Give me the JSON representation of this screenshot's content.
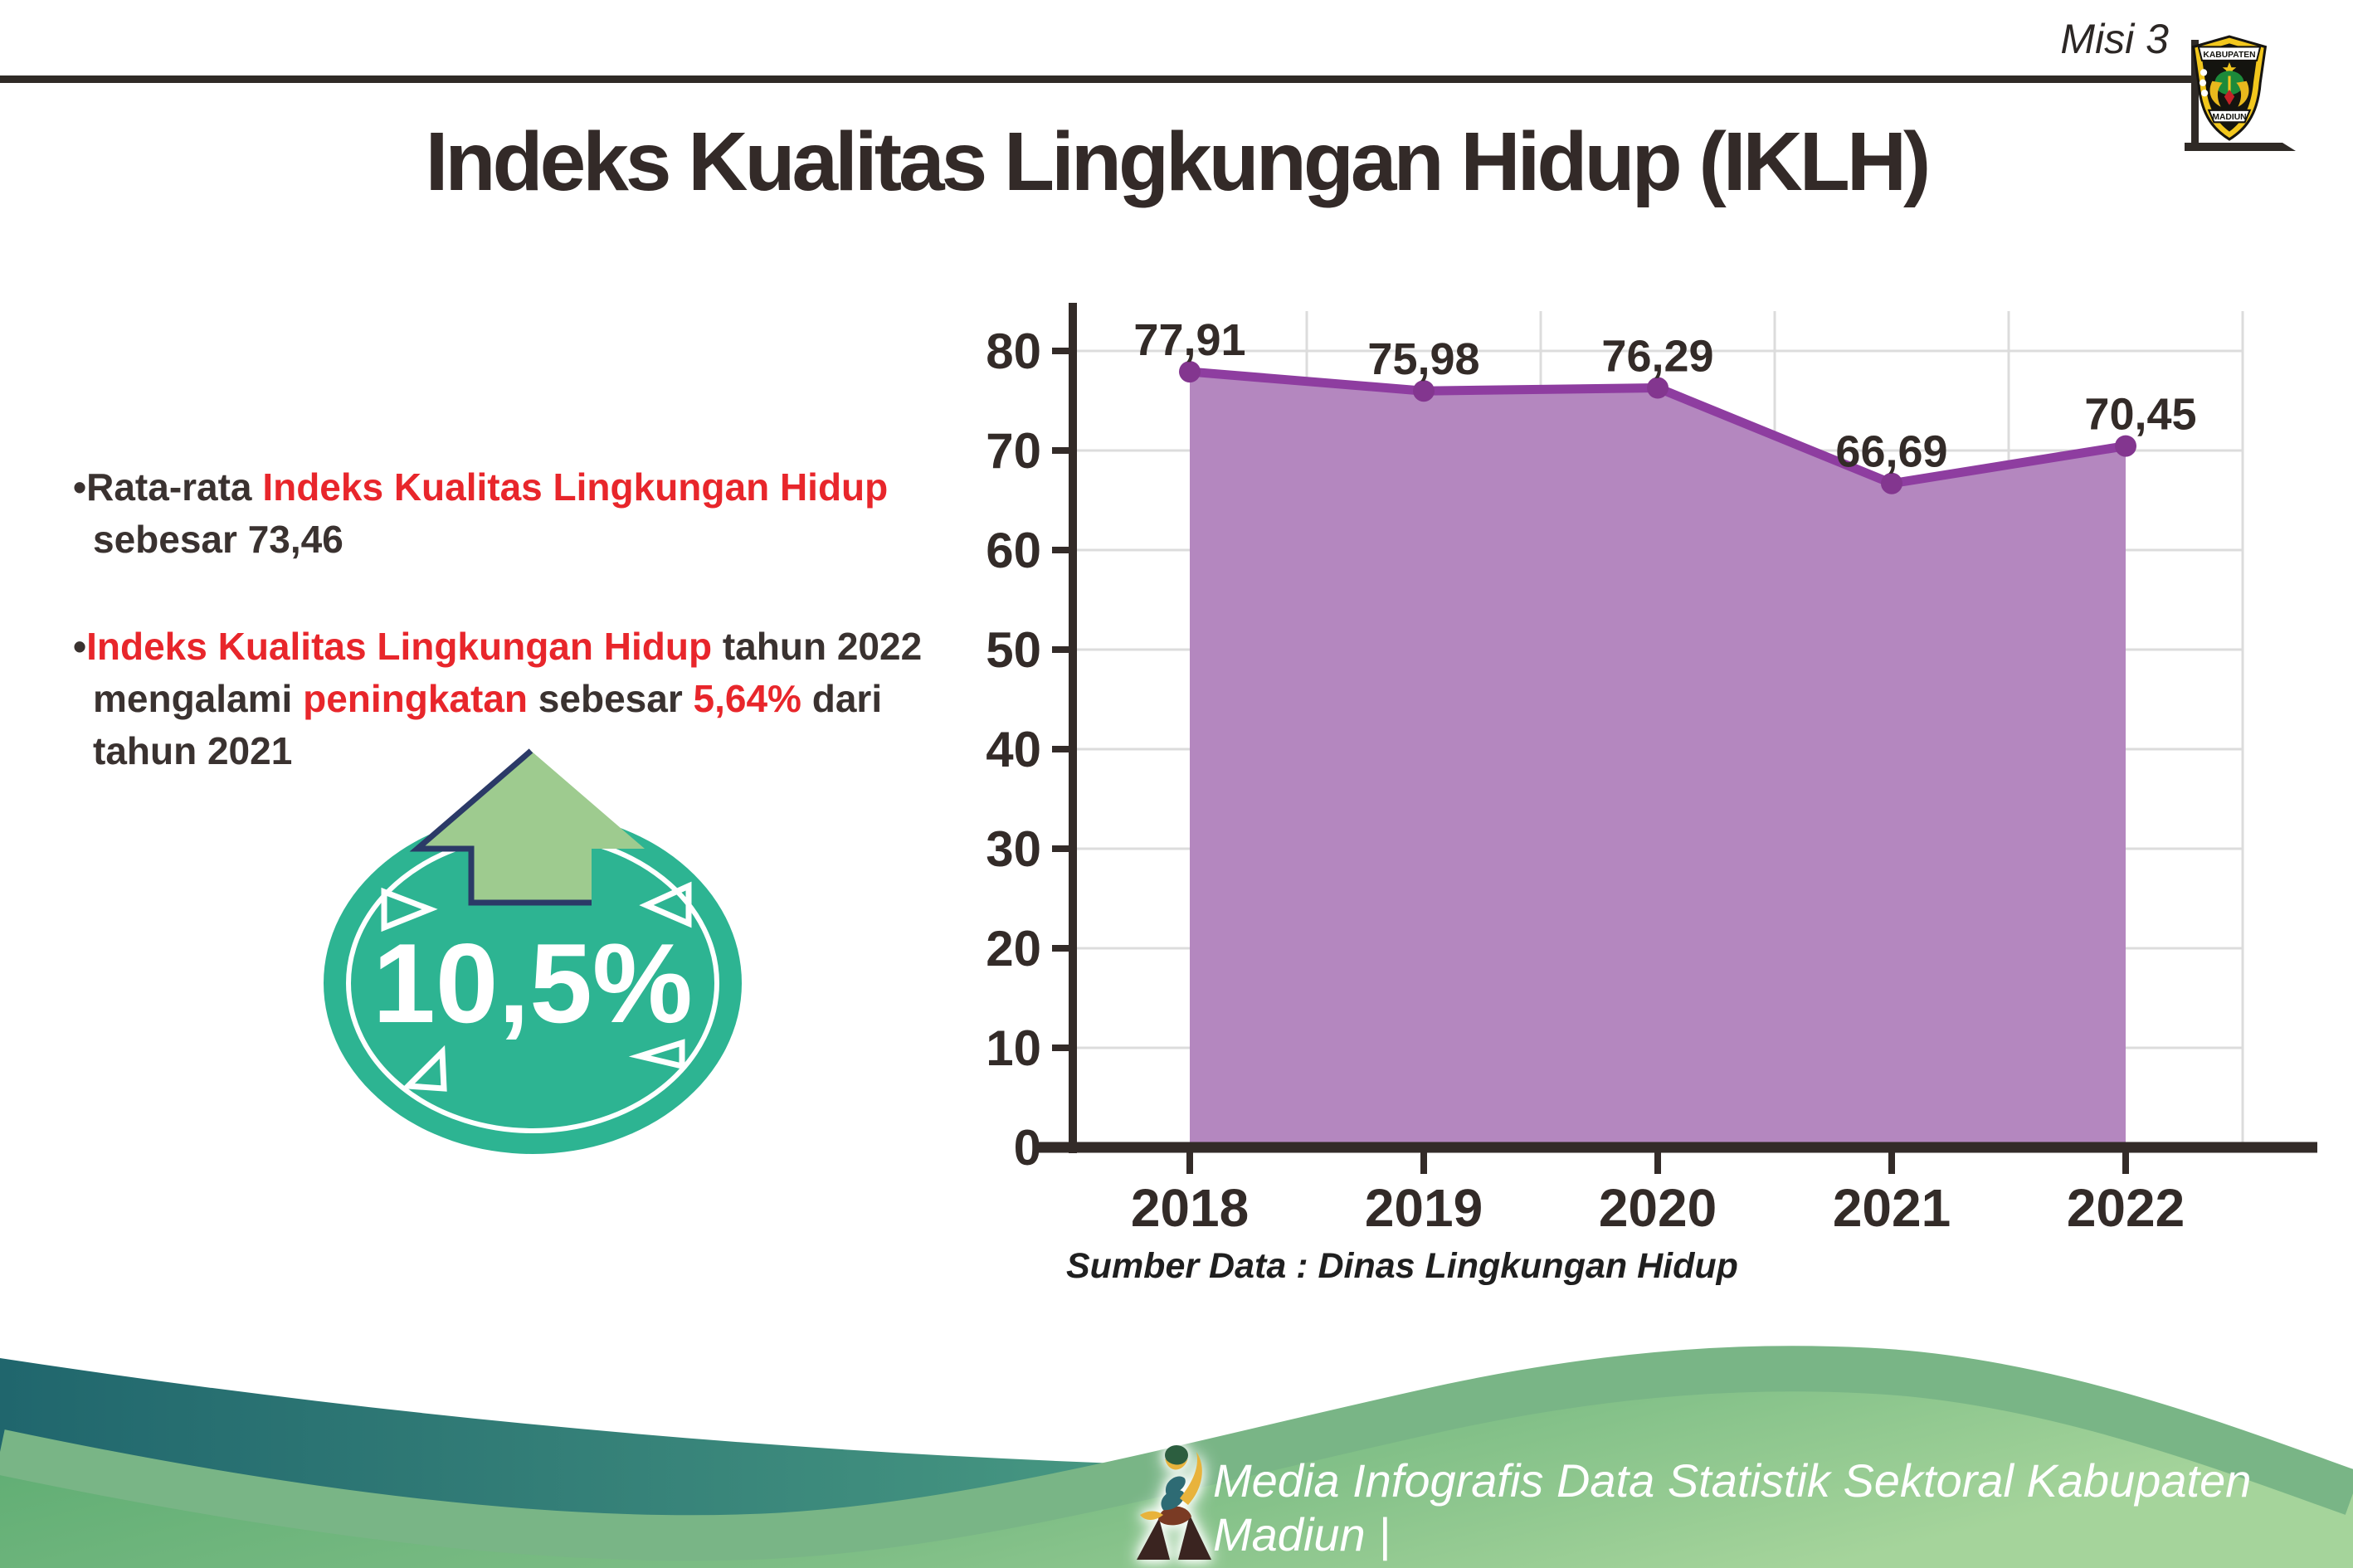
{
  "header": {
    "misi": "Misi 3",
    "title": "Indeks Kualitas Lingkungan Hidup (IKLH)",
    "logo_top": "KABUPATEN",
    "logo_bottom": "MADIUN"
  },
  "bullets": [
    {
      "lines": [
        [
          {
            "t": "•",
            "red": false
          },
          {
            "t": "Rata-rata ",
            "red": false
          },
          {
            "t": "Indeks Kualitas Lingkungan Hidup",
            "red": true
          }
        ],
        [
          {
            "t": "sebesar 73,46",
            "red": false
          }
        ]
      ]
    },
    {
      "lines": [
        [
          {
            "t": "•",
            "red": false
          },
          {
            "t": "Indeks Kualitas Lingkungan Hidup",
            "red": true
          },
          {
            "t": " tahun 2022",
            "red": false
          }
        ],
        [
          {
            "t": "mengalami ",
            "red": false
          },
          {
            "t": "peningkatan",
            "red": true
          },
          {
            "t": " sebesar ",
            "red": false
          },
          {
            "t": "5,64%",
            "red": true
          },
          {
            "t": " dari",
            "red": false
          }
        ],
        [
          {
            "t": "tahun 2021",
            "red": false
          }
        ]
      ]
    }
  ],
  "badge": {
    "percent": "10,5%",
    "circle_color": "#2db492",
    "arrow_color": "#9ecb8f",
    "arrow_outline": "#2b3a67"
  },
  "chart_data": {
    "type": "area",
    "categories": [
      "2018",
      "2019",
      "2020",
      "2021",
      "2022"
    ],
    "values": [
      77.91,
      75.98,
      76.29,
      66.69,
      70.45
    ],
    "point_labels": [
      "77,91",
      "75,98",
      "76,29",
      "66,69",
      "70,45"
    ],
    "title": "",
    "xlabel": "",
    "ylabel": "",
    "ylim": [
      0,
      80
    ],
    "ytick_step": 10,
    "grid": true,
    "legend": false,
    "source_note": "Sumber Data : Dinas Lingkungan Hidup",
    "colors": {
      "area": "#b487bf",
      "line": "#8e3da0",
      "dot": "#83368f",
      "axis": "#332b28",
      "grid": "#dcdcdc",
      "label": "#332b28"
    }
  },
  "footer": {
    "credit": "Media Infografis Data Statistik Sektoral Kabupaten Madiun |",
    "teal_color": "#20666d",
    "green_color": "#5cab72"
  }
}
